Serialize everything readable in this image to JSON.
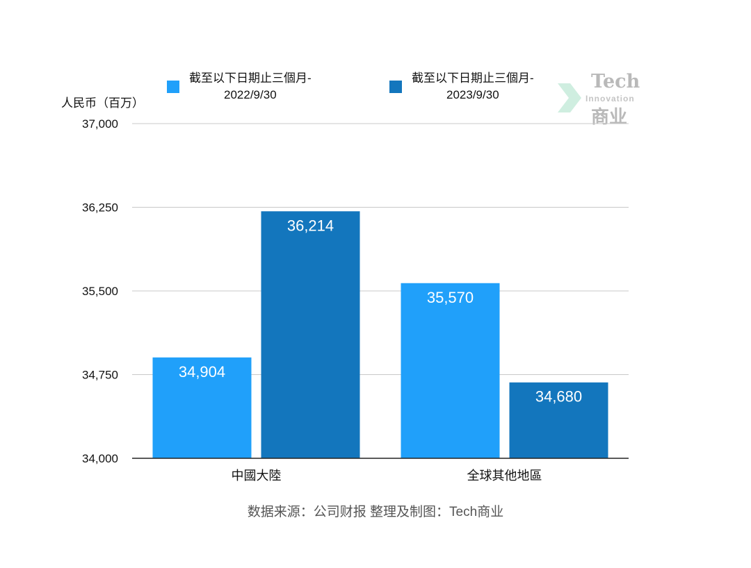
{
  "chart_data": {
    "type": "bar",
    "ylabel": "人民币（百万）",
    "categories": [
      "中國大陸",
      "全球其他地區"
    ],
    "series": [
      {
        "name_line1": "截至以下日期止三個月-",
        "name_line2": "2022/9/30",
        "color": "#20a0fa",
        "values": [
          34904,
          35570
        ],
        "labels": [
          "34,904",
          "35,570"
        ]
      },
      {
        "name_line1": "截至以下日期止三個月-",
        "name_line2": "2023/9/30",
        "color": "#1376bd",
        "values": [
          36214,
          34680
        ],
        "labels": [
          "36,214",
          "34,680"
        ]
      }
    ],
    "ylim": [
      34000,
      37000
    ],
    "yticks": [
      34000,
      34750,
      35500,
      36250,
      37000
    ],
    "ytick_labels": [
      "34,000",
      "34,750",
      "35,500",
      "36,250",
      "37,000"
    ],
    "grid": true,
    "legend_position": "top"
  },
  "source_note": "数据来源：公司财报 整理及制图：Tech商业",
  "watermark": {
    "line1": "Tech",
    "line2": "Innovation",
    "line3": "商业"
  }
}
